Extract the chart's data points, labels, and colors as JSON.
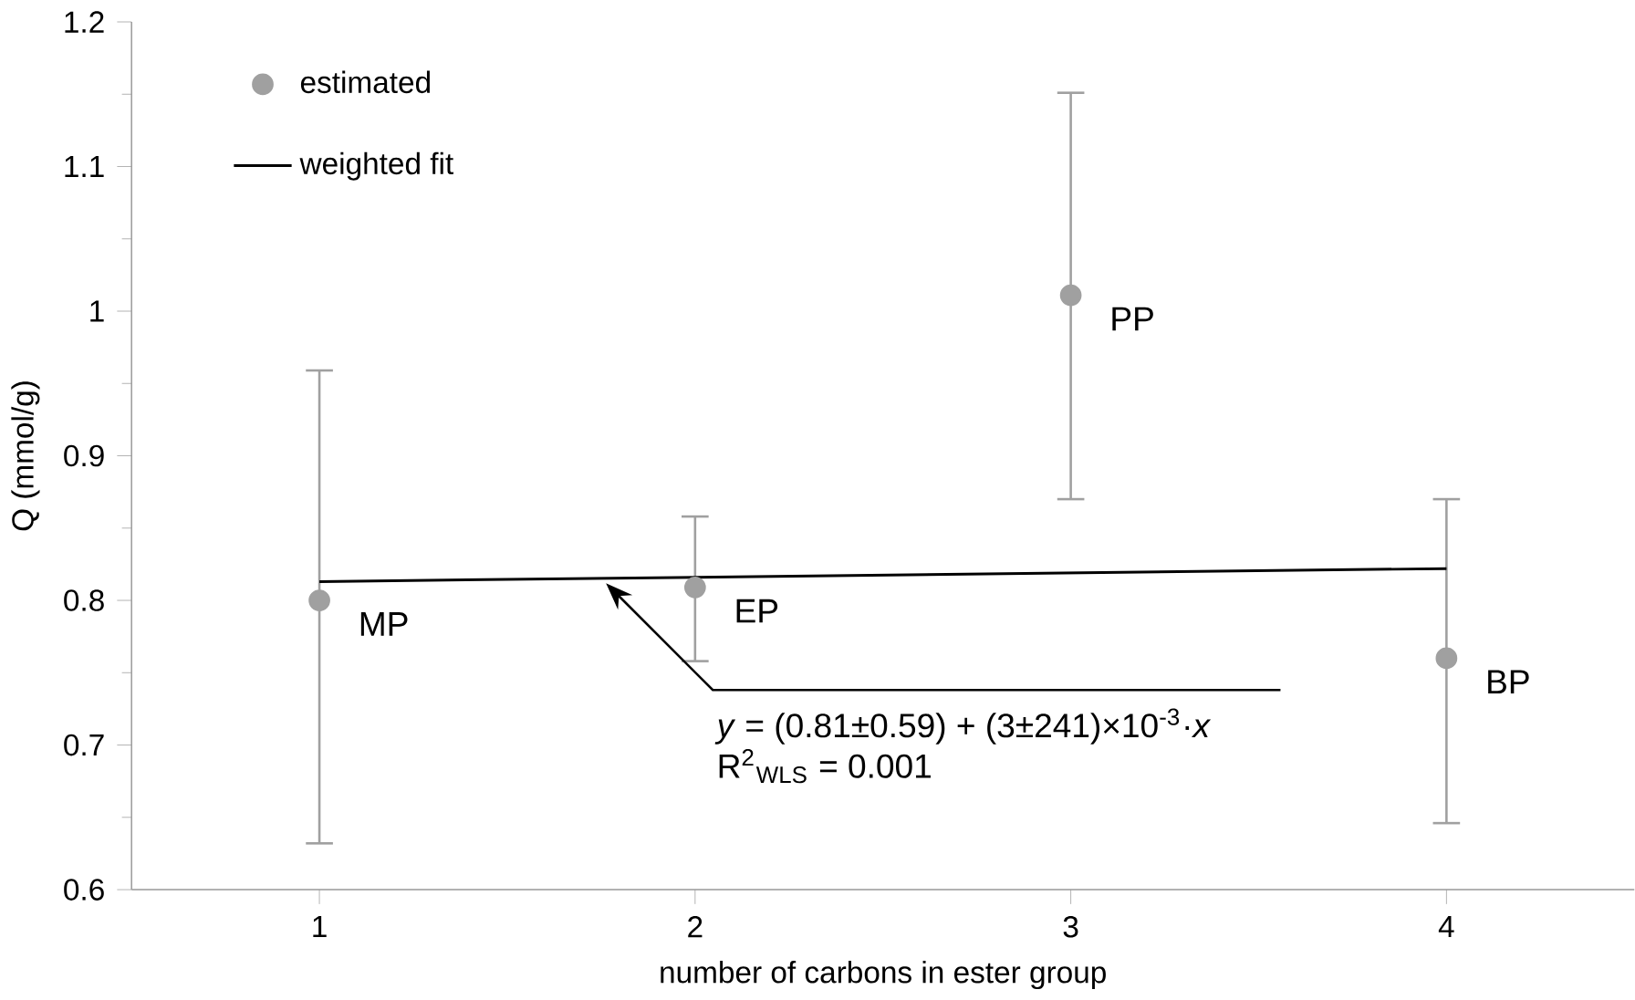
{
  "chart_data": {
    "type": "scatter",
    "xlabel": "number of carbons in ester group",
    "ylabel": "Q (mmol/g)",
    "xlim": [
      0.5,
      4.5
    ],
    "xticks": [
      1,
      2,
      3,
      4
    ],
    "ylim": [
      0.6,
      1.2
    ],
    "yticks": [
      0.6,
      0.7,
      0.8,
      0.9,
      1,
      1.1,
      1.2
    ],
    "grid": false,
    "legend": "top left",
    "series": [
      {
        "name": "estimated",
        "type": "scatter",
        "marker": "circle",
        "color": "#a0a0a0",
        "x": [
          1,
          2,
          3,
          4
        ],
        "values": [
          0.8,
          0.809,
          1.011,
          0.76
        ],
        "errors": [
          [
            0.632,
            0.959
          ],
          [
            0.758,
            0.858
          ],
          [
            0.87,
            1.151
          ],
          [
            0.646,
            0.87
          ]
        ]
      },
      {
        "name": "weighted fit",
        "type": "line",
        "color": "#000000",
        "marker": "none",
        "x": [
          1,
          4
        ],
        "values": [
          0.813,
          0.822
        ]
      }
    ],
    "annotations": [
      {
        "text": "MP",
        "x": 1,
        "y": 0.8
      },
      {
        "text": "EP",
        "x": 2,
        "y": 0.809
      },
      {
        "text": "PP",
        "x": 3,
        "y": 1.011
      },
      {
        "text": "BP",
        "x": 4,
        "y": 0.76
      },
      "*y* = (0.81±0.59)  + (3±241)×10$^{-3}$·*x*",
      "R$^{2}$$_{WLS}$ = 0.001"
    ]
  }
}
